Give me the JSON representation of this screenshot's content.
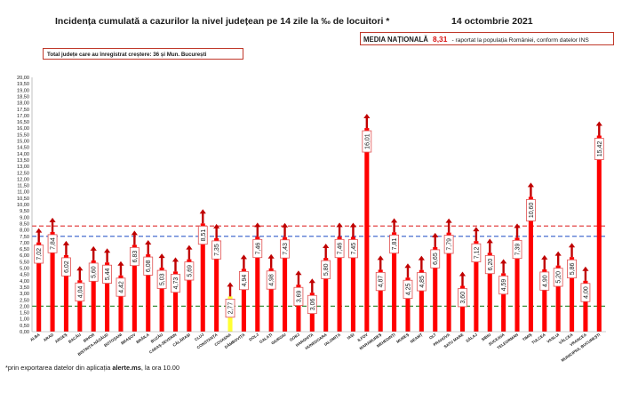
{
  "header": {
    "title": "Incidența cumulată a cazurilor la nivel județean pe 14 zile la ‰ de locuitori *",
    "date": "14 octombrie 2021"
  },
  "national_box": {
    "label": "MEDIA NAȚIONALĂ",
    "value": "8,31",
    "note": "- raportat la populația României, conform datelor INS"
  },
  "counties_box": {
    "text": "Total județe care au înregistrat creștere:  36 și Mun. București"
  },
  "footnote": {
    "prefix": "*prin exportarea datelor din aplicația ",
    "app": "alerte.ms",
    "suffix": ", la ora 10.00"
  },
  "colors": {
    "bar": "#ff0000",
    "bar_min": "#ffff33",
    "arrow": "#c00000",
    "label_border": "#e05050",
    "line_national": "#e03030",
    "line_blue": "#4a6fd0",
    "line_green": "#3c8c3c"
  },
  "chart_data": {
    "type": "bar",
    "categories": [
      "ALBA",
      "ARAD",
      "ARGEȘ",
      "BACĂU",
      "BIHOR",
      "BISTRIȚA-NĂSĂUD",
      "BOTOȘANI",
      "BRAȘOV",
      "BRĂILA",
      "BUZĂU",
      "CARAȘ-SEVERIN",
      "CĂLĂRAȘI",
      "CLUJ",
      "CONSTANȚA",
      "COVASNA",
      "DÂMBOVIȚA",
      "DOLJ",
      "GALAȚI",
      "GIURGIU",
      "GORJ",
      "HARGHITA",
      "HUNEDOARA",
      "IALOMIȚA",
      "IAȘI",
      "ILFOV",
      "MARAMUREȘ",
      "MEHEDINȚI",
      "MUREȘ",
      "NEAMȚ",
      "OLT",
      "PRAHOVA",
      "SATU MARE",
      "SĂLAJ",
      "SIBIU",
      "SUCEAVA",
      "TELEORMAN",
      "TIMIȘ",
      "TULCEA",
      "VASLUI",
      "VÂLCEA",
      "VRANCEA",
      "MUNICIPIUL BUCUREȘTI"
    ],
    "values": [
      7.02,
      7.84,
      6.02,
      4.04,
      5.6,
      5.44,
      4.42,
      6.83,
      6.08,
      5.03,
      4.73,
      5.69,
      8.51,
      7.35,
      2.77,
      4.94,
      7.46,
      4.98,
      7.43,
      3.69,
      3.06,
      5.8,
      7.46,
      7.45,
      16.01,
      4.87,
      7.81,
      4.25,
      4.85,
      6.65,
      7.79,
      3.6,
      7.12,
      6.2,
      4.59,
      7.39,
      10.6,
      4.9,
      5.2,
      5.86,
      4.0,
      15.42
    ],
    "value_labels": [
      "7,02",
      "7,84",
      "6,02",
      "4,04",
      "5,60",
      "5,44",
      "4,42",
      "6,83",
      "6,08",
      "5,03",
      "4,73",
      "5,69",
      "8,51",
      "7,35",
      "2,77",
      "4,94",
      "7,46",
      "4,98",
      "7,43",
      "3,69",
      "3,06",
      "5,80",
      "7,46",
      "7,45",
      "16,01",
      "4,87",
      "7,81",
      "4,25",
      "4,85",
      "6,65",
      "7,79",
      "3,60",
      "7,12",
      "6,20",
      "4,59",
      "7,39",
      "10,60",
      "4,90",
      "5,20",
      "5,86",
      "4,00",
      "15,42"
    ],
    "yticks": [
      "0,00",
      "0,50",
      "1,00",
      "1,50",
      "2,00",
      "2,50",
      "3,00",
      "3,50",
      "4,00",
      "4,50",
      "5,00",
      "5,50",
      "6,00",
      "6,50",
      "7,00",
      "7,50",
      "8,00",
      "8,50",
      "9,00",
      "9,50",
      "10,00",
      "10,50",
      "11,00",
      "11,50",
      "12,00",
      "12,50",
      "13,00",
      "13,50",
      "14,00",
      "14,50",
      "15,00",
      "15,50",
      "16,00",
      "16,50",
      "17,00",
      "17,50",
      "18,00",
      "18,50",
      "19,00",
      "19,50",
      "20,00"
    ],
    "ylim": [
      0,
      20
    ],
    "reference_lines": [
      {
        "value": 8.31,
        "style": "dashed",
        "color": "#e03030"
      },
      {
        "value": 7.5,
        "style": "dashed",
        "color": "#4a6fd0"
      },
      {
        "value": 2.0,
        "style": "dashed",
        "color": "#3c8c3c"
      }
    ],
    "grid": false,
    "legend": "none"
  }
}
